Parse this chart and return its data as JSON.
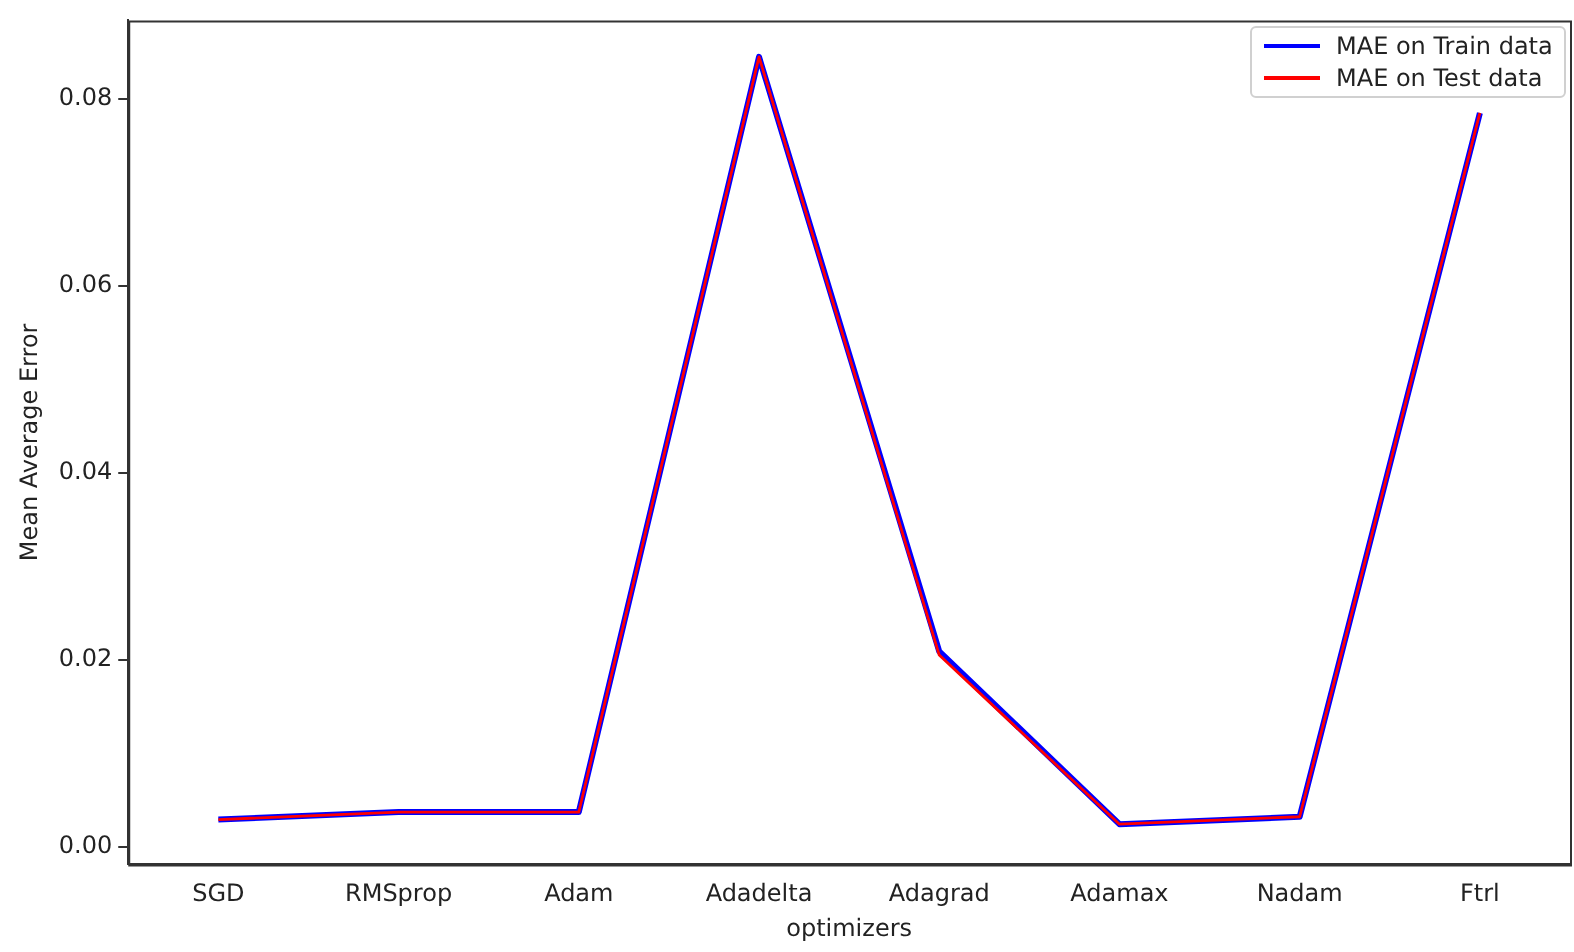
{
  "chart_data": {
    "type": "line",
    "xlabel": "optimizers",
    "ylabel": "Mean Average Error",
    "categories": [
      "SGD",
      "RMSprop",
      "Adam",
      "Adadelta",
      "Adagrad",
      "Adamax",
      "Nadam",
      "Ftrl"
    ],
    "series": [
      {
        "name": "MAE on Train data",
        "color": "#0000ff",
        "values": [
          0.0029,
          0.0037,
          0.0037,
          0.0845,
          0.0209,
          0.0024,
          0.0032,
          0.0785
        ]
      },
      {
        "name": "MAE on Test data",
        "color": "#ff0000",
        "values": [
          0.0029,
          0.0037,
          0.0037,
          0.0845,
          0.0205,
          0.0024,
          0.0032,
          0.0785
        ]
      }
    ],
    "ylim": [
      -0.0019,
      0.0884
    ],
    "yticks": [
      {
        "value": 0,
        "label": "0.00"
      },
      0.02,
      0.04,
      0.06,
      0.08
    ],
    "grid": false,
    "legend": "top right",
    "marker": "none",
    "line_style": "solid"
  }
}
